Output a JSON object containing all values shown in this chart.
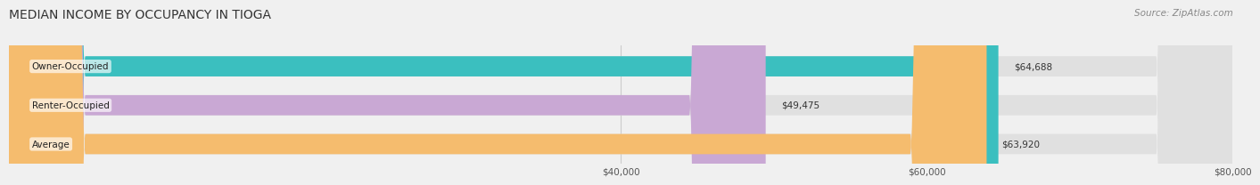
{
  "title": "MEDIAN INCOME BY OCCUPANCY IN TIOGA",
  "source": "Source: ZipAtlas.com",
  "categories": [
    "Owner-Occupied",
    "Renter-Occupied",
    "Average"
  ],
  "values": [
    64688,
    49475,
    63920
  ],
  "labels": [
    "$64,688",
    "$49,475",
    "$63,920"
  ],
  "bar_colors": [
    "#3bbfbf",
    "#c9a8d4",
    "#f5bc6e"
  ],
  "xlim": [
    0,
    80000
  ],
  "xticks": [
    40000,
    60000,
    80000
  ],
  "xtick_labels": [
    "$40,000",
    "$60,000",
    "$80,000"
  ],
  "background_color": "#f0f0f0",
  "bar_bg_color": "#e0e0e0",
  "title_fontsize": 10,
  "source_fontsize": 7.5,
  "label_fontsize": 7.5,
  "tick_fontsize": 7.5,
  "bar_height": 0.52
}
